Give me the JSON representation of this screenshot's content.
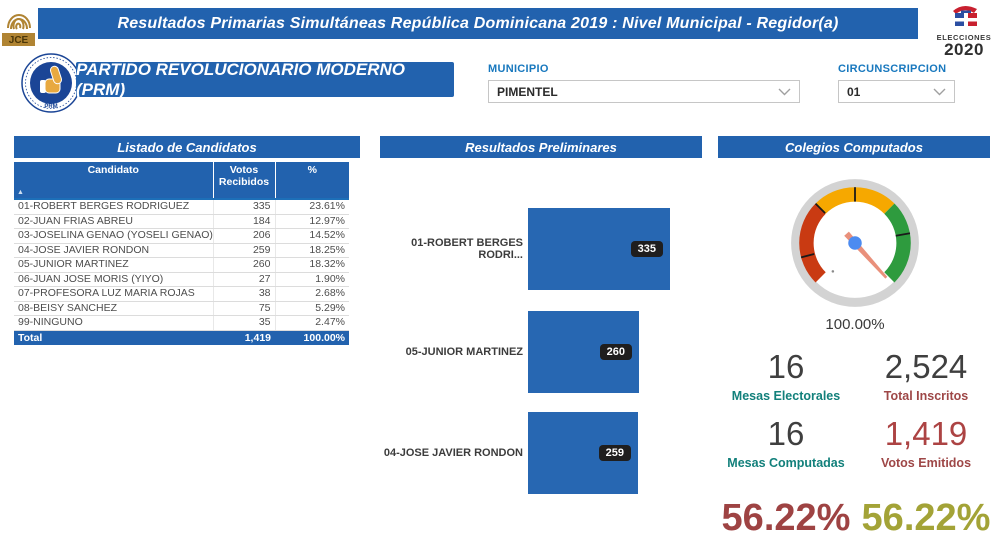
{
  "header": {
    "title": "Resultados Primarias Simultáneas República Dominicana 2019 : Nivel Municipal -  Regidor(a)",
    "jce_logo_text": "JCE",
    "elecciones_logo": {
      "line1": "ELECCIONES",
      "line2": "2020"
    }
  },
  "party": {
    "name": "PARTIDO REVOLUCIONARIO MODERNO (PRM)",
    "logo_text": "PRM"
  },
  "filters": {
    "municipio": {
      "label": "MUNICIPIO",
      "value": "PIMENTEL"
    },
    "circunscripcion": {
      "label": "CIRCUNSCRIPCION",
      "value": "01"
    }
  },
  "panels": {
    "candidates_title": "Listado de Candidatos",
    "results_title": "Resultados Preliminares",
    "colegios_title": "Colegios Computados"
  },
  "candidates_table": {
    "columns": [
      "Candidato",
      "Votos Recibidos",
      "%"
    ],
    "sort_indicator": "▲",
    "rows": [
      {
        "candidato": "01-ROBERT BERGES RODRIGUEZ",
        "votos": "335",
        "pct": "23.61%"
      },
      {
        "candidato": "02-JUAN FRIAS ABREU",
        "votos": "184",
        "pct": "12.97%"
      },
      {
        "candidato": "03-JOSELINA GENAO (YOSELI GENAO)",
        "votos": "206",
        "pct": "14.52%"
      },
      {
        "candidato": "04-JOSE JAVIER RONDON",
        "votos": "259",
        "pct": "18.25%"
      },
      {
        "candidato": "05-JUNIOR MARTINEZ",
        "votos": "260",
        "pct": "18.32%"
      },
      {
        "candidato": "06-JUAN JOSE MORIS (YIYO)",
        "votos": "27",
        "pct": "1.90%"
      },
      {
        "candidato": "07-PROFESORA LUZ MARIA ROJAS",
        "votos": "38",
        "pct": "2.68%"
      },
      {
        "candidato": "08-BEISY SANCHEZ",
        "votos": "75",
        "pct": "5.29%"
      },
      {
        "candidato": "99-NINGUNO",
        "votos": "35",
        "pct": "2.47%"
      }
    ],
    "total": {
      "label": "Total",
      "votos": "1,419",
      "pct": "100.00%"
    }
  },
  "chart_data": [
    {
      "type": "bar",
      "orientation": "horizontal",
      "title": "Resultados Preliminares",
      "categories": [
        "01-ROBERT BERGES RODRI...",
        "05-JUNIOR MARTINEZ",
        "04-JOSE JAVIER RONDON"
      ],
      "values": [
        335,
        260,
        259
      ],
      "xlim": [
        0,
        400
      ],
      "grid": false,
      "bar_color": "#2767B2",
      "value_badge_color": "#1F1E1E"
    },
    {
      "type": "gauge",
      "title": "Colegios Computados",
      "value_label": "100.00%",
      "band_colors": [
        "#C93A12",
        "#F6A800",
        "#2E9B3E"
      ],
      "ring_color": "#D3D3D3",
      "needle_color": "#E9907B",
      "hub_color": "#4C8BF0"
    }
  ],
  "stats": [
    {
      "value": "16",
      "label": "Mesas Electorales",
      "value_color": "#3F3F3F",
      "label_color": "#12807B"
    },
    {
      "value": "2,524",
      "label": "Total Inscritos",
      "value_color": "#3F3F3F",
      "label_color": "#9E4747"
    },
    {
      "value": "16",
      "label": "Mesas Computadas",
      "value_color": "#3F3F3F",
      "label_color": "#12807B"
    },
    {
      "value": "1,419",
      "label": "Votos Emitidos",
      "value_color": "#AC4343",
      "label_color": "#9E4747"
    }
  ],
  "percentages": [
    {
      "value": "56.22%",
      "color": "#9E4343"
    },
    {
      "value": "56.22%",
      "color": "#A3A337"
    }
  ],
  "colors": {
    "brand_blue": "#2262AE",
    "filter_label_blue": "#1878BE",
    "badge_dark": "#1F1E1E"
  }
}
